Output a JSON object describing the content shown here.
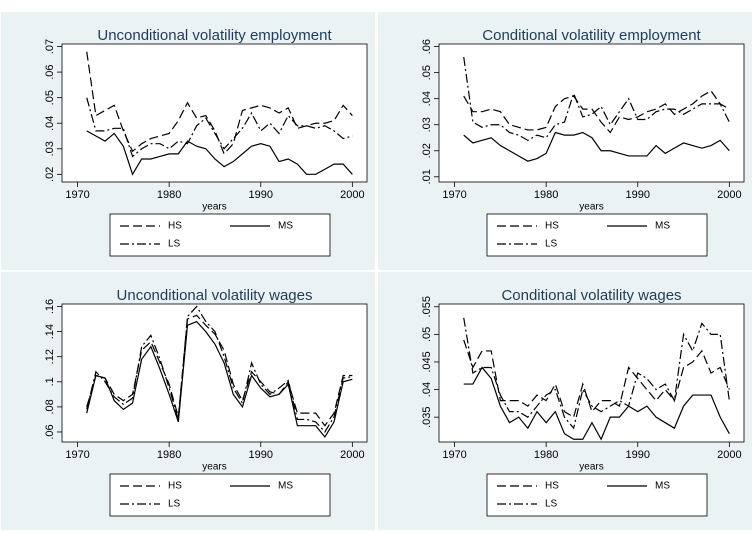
{
  "chart_data": [
    {
      "type": "line",
      "title": "Unconditional volatility employment",
      "x_label": "years",
      "x": [
        1971,
        1972,
        1973,
        1974,
        1975,
        1976,
        1977,
        1978,
        1979,
        1980,
        1981,
        1982,
        1983,
        1984,
        1985,
        1986,
        1987,
        1988,
        1989,
        1990,
        1991,
        1992,
        1993,
        1994,
        1995,
        1996,
        1997,
        1998,
        1999,
        2000
      ],
      "xlim": [
        1968.3,
        2001.6
      ],
      "xticks": [
        1970,
        1980,
        1990,
        2000
      ],
      "ylim": [
        0.017,
        0.071
      ],
      "yticks": [
        {
          "value": 0.02,
          "label": ".02"
        },
        {
          "value": 0.03,
          "label": ".03"
        },
        {
          "value": 0.04,
          "label": ".04"
        },
        {
          "value": 0.05,
          "label": ".05"
        },
        {
          "value": 0.06,
          "label": ".06"
        },
        {
          "value": 0.07,
          "label": ".07"
        }
      ],
      "series": [
        {
          "name": "HS",
          "color": "#000000",
          "dash": "9,4",
          "values": [
            0.068,
            0.043,
            0.045,
            0.047,
            0.037,
            0.029,
            0.032,
            0.034,
            0.035,
            0.036,
            0.041,
            0.048,
            0.042,
            0.043,
            0.037,
            0.028,
            0.032,
            0.045,
            0.046,
            0.047,
            0.046,
            0.044,
            0.046,
            0.038,
            0.039,
            0.04,
            0.04,
            0.041,
            0.047,
            0.043
          ]
        },
        {
          "name": "MS",
          "color": "#000000",
          "dash": "none",
          "values": [
            0.037,
            0.035,
            0.033,
            0.036,
            0.031,
            0.02,
            0.026,
            0.026,
            0.027,
            0.028,
            0.028,
            0.033,
            0.031,
            0.03,
            0.026,
            0.023,
            0.025,
            0.028,
            0.031,
            0.032,
            0.031,
            0.025,
            0.026,
            0.024,
            0.02,
            0.02,
            0.022,
            0.024,
            0.024,
            0.02
          ]
        },
        {
          "name": "LS",
          "color": "#000000",
          "dash": "9,3,2,3",
          "values": [
            0.05,
            0.037,
            0.037,
            0.038,
            0.038,
            0.027,
            0.03,
            0.032,
            0.032,
            0.03,
            0.033,
            0.032,
            0.039,
            0.042,
            0.036,
            0.03,
            0.034,
            0.038,
            0.044,
            0.037,
            0.04,
            0.036,
            0.043,
            0.039,
            0.039,
            0.038,
            0.039,
            0.037,
            0.034,
            0.035
          ]
        }
      ]
    },
    {
      "type": "line",
      "title": "Conditional volatility employment",
      "x_label": "years",
      "x": [
        1971,
        1972,
        1973,
        1974,
        1975,
        1976,
        1977,
        1978,
        1979,
        1980,
        1981,
        1982,
        1983,
        1984,
        1985,
        1986,
        1987,
        1988,
        1989,
        1990,
        1991,
        1992,
        1993,
        1994,
        1995,
        1996,
        1997,
        1998,
        1999,
        2000
      ],
      "xlim": [
        1968.3,
        2001.6
      ],
      "xticks": [
        1970,
        1980,
        1990,
        2000
      ],
      "ylim": [
        0.008,
        0.061
      ],
      "yticks": [
        {
          "value": 0.01,
          "label": ".01"
        },
        {
          "value": 0.02,
          "label": ".02"
        },
        {
          "value": 0.03,
          "label": ".03"
        },
        {
          "value": 0.04,
          "label": ".04"
        },
        {
          "value": 0.05,
          "label": ".05"
        },
        {
          "value": 0.06,
          "label": ".06"
        }
      ],
      "series": [
        {
          "name": "HS",
          "color": "#000000",
          "dash": "9,4",
          "values": [
            0.041,
            0.035,
            0.035,
            0.036,
            0.035,
            0.03,
            0.029,
            0.028,
            0.028,
            0.029,
            0.037,
            0.04,
            0.041,
            0.036,
            0.036,
            0.031,
            0.027,
            0.033,
            0.032,
            0.033,
            0.035,
            0.036,
            0.038,
            0.034,
            0.036,
            0.038,
            0.041,
            0.043,
            0.038,
            0.036
          ]
        },
        {
          "name": "MS",
          "color": "#000000",
          "dash": "none",
          "values": [
            0.026,
            0.023,
            0.024,
            0.025,
            0.022,
            0.02,
            0.018,
            0.016,
            0.017,
            0.019,
            0.027,
            0.026,
            0.026,
            0.027,
            0.025,
            0.02,
            0.02,
            0.019,
            0.018,
            0.018,
            0.018,
            0.022,
            0.019,
            0.021,
            0.023,
            0.022,
            0.021,
            0.022,
            0.024,
            0.02
          ]
        },
        {
          "name": "LS",
          "color": "#000000",
          "dash": "9,3,2,3",
          "values": [
            0.056,
            0.031,
            0.029,
            0.03,
            0.03,
            0.027,
            0.026,
            0.024,
            0.026,
            0.025,
            0.03,
            0.031,
            0.042,
            0.033,
            0.034,
            0.037,
            0.03,
            0.035,
            0.04,
            0.032,
            0.032,
            0.035,
            0.036,
            0.036,
            0.034,
            0.036,
            0.038,
            0.038,
            0.038,
            0.031
          ]
        }
      ]
    },
    {
      "type": "line",
      "title": "Unconditional volatility wages",
      "x_label": "years",
      "x": [
        1971,
        1972,
        1973,
        1974,
        1975,
        1976,
        1977,
        1978,
        1979,
        1980,
        1981,
        1982,
        1983,
        1984,
        1985,
        1986,
        1987,
        1988,
        1989,
        1990,
        1991,
        1992,
        1993,
        1994,
        1995,
        1996,
        1997,
        1998,
        1999,
        2000
      ],
      "xlim": [
        1968.3,
        2001.6
      ],
      "xticks": [
        1970,
        1980,
        1990,
        2000
      ],
      "ylim": [
        0.052,
        0.162
      ],
      "yticks": [
        {
          "value": 0.06,
          "label": ".06"
        },
        {
          "value": 0.08,
          "label": ".08"
        },
        {
          "value": 0.1,
          "label": ".1"
        },
        {
          "value": 0.12,
          "label": ".12"
        },
        {
          "value": 0.14,
          "label": ".14"
        },
        {
          "value": 0.16,
          "label": ".16"
        }
      ],
      "series": [
        {
          "name": "HS",
          "color": "#000000",
          "dash": "9,4",
          "values": [
            0.08,
            0.105,
            0.103,
            0.09,
            0.085,
            0.09,
            0.125,
            0.132,
            0.115,
            0.098,
            0.072,
            0.15,
            0.153,
            0.145,
            0.138,
            0.125,
            0.098,
            0.085,
            0.108,
            0.1,
            0.092,
            0.09,
            0.1,
            0.075,
            0.075,
            0.075,
            0.065,
            0.075,
            0.105,
            0.105
          ]
        },
        {
          "name": "MS",
          "color": "#000000",
          "dash": "none",
          "values": [
            0.075,
            0.105,
            0.103,
            0.085,
            0.078,
            0.083,
            0.118,
            0.128,
            0.11,
            0.09,
            0.068,
            0.145,
            0.148,
            0.14,
            0.13,
            0.115,
            0.09,
            0.08,
            0.105,
            0.095,
            0.088,
            0.09,
            0.098,
            0.065,
            0.065,
            0.065,
            0.056,
            0.068,
            0.1,
            0.102
          ]
        },
        {
          "name": "LS",
          "color": "#000000",
          "dash": "9,3,2,3",
          "values": [
            0.078,
            0.108,
            0.1,
            0.088,
            0.082,
            0.087,
            0.128,
            0.137,
            0.118,
            0.095,
            0.07,
            0.152,
            0.16,
            0.148,
            0.14,
            0.12,
            0.095,
            0.083,
            0.115,
            0.098,
            0.09,
            0.095,
            0.101,
            0.07,
            0.07,
            0.068,
            0.06,
            0.072,
            0.103,
            0.104
          ]
        }
      ]
    },
    {
      "type": "line",
      "title": "Conditional volatility wages",
      "x_label": "years",
      "x": [
        1971,
        1972,
        1973,
        1974,
        1975,
        1976,
        1977,
        1978,
        1979,
        1980,
        1981,
        1982,
        1983,
        1984,
        1985,
        1986,
        1987,
        1988,
        1989,
        1990,
        1991,
        1992,
        1993,
        1994,
        1995,
        1996,
        1997,
        1998,
        1999,
        2000
      ],
      "xlim": [
        1968.3,
        2001.6
      ],
      "xticks": [
        1970,
        1980,
        1990,
        2000
      ],
      "ylim": [
        0.0305,
        0.0555
      ],
      "yticks": [
        {
          "value": 0.035,
          "label": ".035"
        },
        {
          "value": 0.04,
          "label": ".04"
        },
        {
          "value": 0.045,
          "label": ".045"
        },
        {
          "value": 0.05,
          "label": ".05"
        },
        {
          "value": 0.055,
          "label": ".055"
        }
      ],
      "series": [
        {
          "name": "HS",
          "color": "#000000",
          "dash": "9,4",
          "values": [
            0.049,
            0.044,
            0.047,
            0.047,
            0.038,
            0.038,
            0.038,
            0.037,
            0.039,
            0.038,
            0.041,
            0.036,
            0.035,
            0.041,
            0.036,
            0.038,
            0.038,
            0.037,
            0.044,
            0.042,
            0.04,
            0.038,
            0.04,
            0.038,
            0.044,
            0.045,
            0.047,
            0.043,
            0.044,
            0.04
          ]
        },
        {
          "name": "MS",
          "color": "#000000",
          "dash": "none",
          "values": [
            0.041,
            0.041,
            0.044,
            0.042,
            0.037,
            0.034,
            0.035,
            0.033,
            0.036,
            0.034,
            0.036,
            0.032,
            0.031,
            0.031,
            0.034,
            0.031,
            0.035,
            0.035,
            0.037,
            0.036,
            0.037,
            0.035,
            0.034,
            0.033,
            0.037,
            0.039,
            0.039,
            0.039,
            0.035,
            0.032
          ]
        },
        {
          "name": "LS",
          "color": "#000000",
          "dash": "9,3,2,3",
          "values": [
            0.053,
            0.043,
            0.044,
            0.044,
            0.039,
            0.036,
            0.036,
            0.035,
            0.037,
            0.039,
            0.04,
            0.035,
            0.033,
            0.04,
            0.037,
            0.036,
            0.037,
            0.038,
            0.037,
            0.043,
            0.042,
            0.04,
            0.041,
            0.038,
            0.05,
            0.047,
            0.052,
            0.05,
            0.05,
            0.038
          ]
        }
      ]
    }
  ]
}
